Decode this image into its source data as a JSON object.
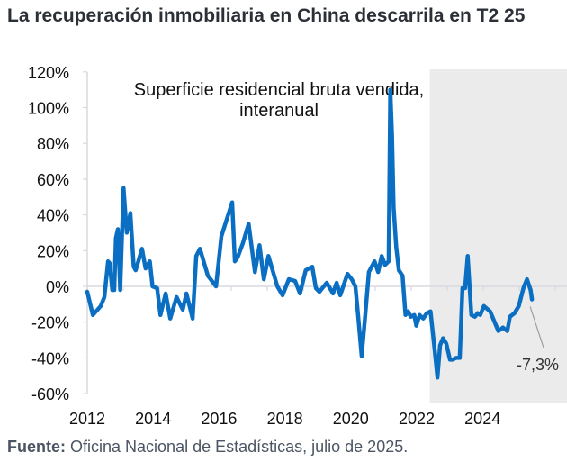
{
  "title": "La recuperación inmobiliaria en China descarrila en T2 25",
  "footer": {
    "source_label": "Fuente:",
    "source_text": "Oficina Nacional de Estadísticas, julio de 2025."
  },
  "colors": {
    "line": "#0a6fc2",
    "shade": "#ebebeb",
    "axis": "#d9d9df",
    "title": "#2b2f36",
    "footer": "#4b5563"
  },
  "chart_data": {
    "type": "line",
    "title": "Superficie residencial bruta vendida, interanual",
    "annotation_lines": [
      "Superficie residencial bruta vendida,",
      "interanual"
    ],
    "xlabel": "",
    "ylabel": "",
    "xlim": [
      2012.0,
      2025.5
    ],
    "ylim": [
      -60,
      120
    ],
    "yticks": [
      120,
      100,
      80,
      60,
      40,
      20,
      0,
      -20,
      -40,
      -60
    ],
    "ytick_labels": [
      "120%",
      "100%",
      "80%",
      "60%",
      "40%",
      "20%",
      "0%",
      "-20%",
      "-40%",
      "-60%"
    ],
    "xticks": [
      2012,
      2014,
      2016,
      2018,
      2020,
      2022,
      2024
    ],
    "xtick_labels": [
      "2012",
      "2014",
      "2016",
      "2018",
      "2020",
      "2022",
      "2024"
    ],
    "shaded_region": {
      "x_start": 2022.4,
      "x_end": 2025.5
    },
    "end_label": "-7,3%",
    "grid": false,
    "series": [
      {
        "name": "Superficie residencial bruta vendida, interanual",
        "x": [
          2012.0,
          2012.17,
          2012.41,
          2012.52,
          2012.63,
          2012.68,
          2012.76,
          2012.82,
          2012.87,
          2012.93,
          2013.0,
          2013.1,
          2013.2,
          2013.31,
          2013.41,
          2013.47,
          2013.52,
          2013.66,
          2013.77,
          2013.9,
          2013.98,
          2014.12,
          2014.22,
          2014.38,
          2014.52,
          2014.71,
          2014.9,
          2015.01,
          2015.2,
          2015.31,
          2015.42,
          2015.66,
          2015.91,
          2016.07,
          2016.4,
          2016.48,
          2016.56,
          2016.72,
          2016.9,
          2017.09,
          2017.23,
          2017.36,
          2017.5,
          2017.77,
          2017.93,
          2018.12,
          2018.31,
          2018.46,
          2018.63,
          2018.83,
          2018.94,
          2019.05,
          2019.27,
          2019.46,
          2019.57,
          2019.68,
          2019.9,
          2020.03,
          2020.14,
          2020.22,
          2020.33,
          2020.44,
          2020.55,
          2020.72,
          2020.83,
          2020.94,
          2021.04,
          2021.15,
          2021.2,
          2021.25,
          2021.3,
          2021.38,
          2021.46,
          2021.57,
          2021.66,
          2021.74,
          2021.82,
          2021.93,
          2021.99,
          2022.09,
          2022.2,
          2022.31,
          2022.42,
          2022.55,
          2022.63,
          2022.71,
          2022.8,
          2022.9,
          2023.01,
          2023.09,
          2023.2,
          2023.31,
          2023.39,
          2023.47,
          2023.55,
          2023.66,
          2023.77,
          2023.85,
          2023.93,
          2024.04,
          2024.23,
          2024.37,
          2024.48,
          2024.62,
          2024.75,
          2024.83,
          2024.97,
          2025.1,
          2025.24,
          2025.35,
          2025.46,
          2025.5
        ],
        "values": [
          -3,
          -16,
          -11,
          -6,
          14,
          13,
          -2,
          -2,
          27,
          32,
          -2,
          55,
          30,
          41,
          11,
          9,
          12,
          21,
          10,
          14,
          0,
          -1,
          -16,
          -4,
          -18,
          -6,
          -13,
          -4,
          -18,
          17,
          21,
          6,
          0,
          28,
          47,
          14,
          16,
          24,
          35,
          8,
          23,
          4,
          17,
          0,
          -5,
          4,
          3,
          -4,
          9,
          11,
          -1,
          -3,
          2,
          -4,
          2,
          -5,
          7,
          4,
          0,
          -16,
          -39,
          -16,
          8,
          14,
          8,
          17,
          12,
          14,
          110,
          85,
          44,
          22,
          9,
          6,
          -16,
          -14,
          -17,
          -16,
          -22,
          -16,
          -18,
          -15,
          -14,
          -36,
          -51,
          -33,
          -29,
          -32,
          -41,
          -41,
          -40,
          -40,
          -1,
          -1,
          17,
          -16,
          -17,
          -15,
          -16,
          -11,
          -14,
          -20,
          -25,
          -23,
          -25,
          -17,
          -15,
          -11,
          -1,
          4,
          -2,
          -7.3
        ]
      }
    ]
  }
}
